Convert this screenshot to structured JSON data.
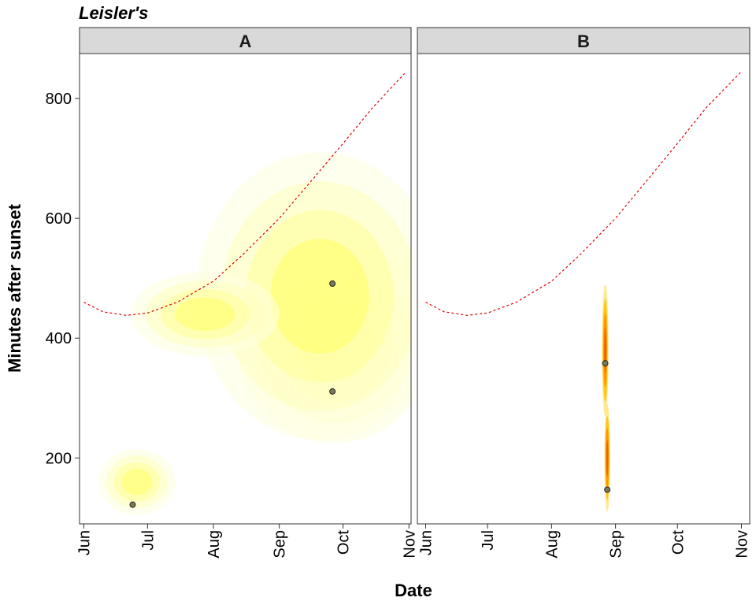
{
  "chart_data": {
    "type": "scatter",
    "title": "Leisler's",
    "xlabel": "Date",
    "ylabel": "Minutes after sunset",
    "x_ticks": [
      "Jun",
      "Jul",
      "Aug",
      "Sep",
      "Oct",
      "Nov"
    ],
    "y_ticks": [
      200,
      400,
      600,
      800
    ],
    "ylim": [
      90,
      875
    ],
    "grid": false,
    "panels": [
      {
        "label": "A",
        "xlim": [
          "2019-05-30",
          "2019-11-02"
        ],
        "points": [
          {
            "x": "2019-06-24",
            "y": 122
          },
          {
            "x": "2019-09-26",
            "y": 491
          },
          {
            "x": "2019-09-26",
            "y": 311
          }
        ],
        "density_colors": [
          "#ffffe0",
          "#ffffc0",
          "#ffff99",
          "#ffff66"
        ],
        "sunset_curve": [
          {
            "x": "2019-06-01",
            "y": 460
          },
          {
            "x": "2019-06-10",
            "y": 444
          },
          {
            "x": "2019-06-21",
            "y": 438
          },
          {
            "x": "2019-07-01",
            "y": 442
          },
          {
            "x": "2019-07-15",
            "y": 460
          },
          {
            "x": "2019-08-01",
            "y": 495
          },
          {
            "x": "2019-08-15",
            "y": 540
          },
          {
            "x": "2019-09-01",
            "y": 600
          },
          {
            "x": "2019-09-15",
            "y": 658
          },
          {
            "x": "2019-10-01",
            "y": 725
          },
          {
            "x": "2019-10-15",
            "y": 785
          },
          {
            "x": "2019-10-30",
            "y": 842
          }
        ]
      },
      {
        "label": "B",
        "xlim": [
          "2019-05-28",
          "2019-11-05"
        ],
        "points": [
          {
            "x": "2019-08-27",
            "y": 358
          },
          {
            "x": "2019-08-28",
            "y": 147
          }
        ],
        "density_colors": [
          "#ffe680",
          "#ffc000",
          "#ff8c00",
          "#e65c00"
        ],
        "sunset_curve": [
          {
            "x": "2019-06-01",
            "y": 460
          },
          {
            "x": "2019-06-10",
            "y": 444
          },
          {
            "x": "2019-06-21",
            "y": 438
          },
          {
            "x": "2019-07-01",
            "y": 442
          },
          {
            "x": "2019-07-15",
            "y": 460
          },
          {
            "x": "2019-08-01",
            "y": 495
          },
          {
            "x": "2019-08-15",
            "y": 540
          },
          {
            "x": "2019-09-01",
            "y": 600
          },
          {
            "x": "2019-09-15",
            "y": 658
          },
          {
            "x": "2019-10-01",
            "y": 725
          },
          {
            "x": "2019-10-15",
            "y": 785
          },
          {
            "x": "2019-11-01",
            "y": 845
          }
        ]
      }
    ]
  }
}
